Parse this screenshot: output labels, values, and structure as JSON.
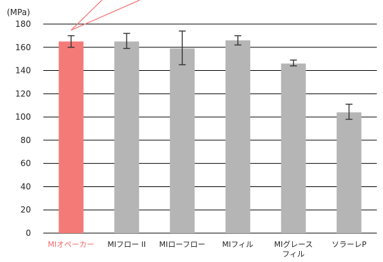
{
  "chart_data": {
    "type": "bar",
    "ylabel": "(MPa)",
    "ylim": [
      0,
      180
    ],
    "yticks": [
      0,
      20,
      40,
      60,
      80,
      100,
      120,
      140,
      160,
      180
    ],
    "grid": true,
    "categories": [
      [
        "MIオペーカー"
      ],
      [
        "MIフロー II"
      ],
      [
        "MIローフロー"
      ],
      [
        "MIフィル"
      ],
      [
        "MIグレース",
        "フィル"
      ],
      [
        "ソラーレP"
      ]
    ],
    "values": [
      165,
      165,
      159,
      166,
      146,
      104
    ],
    "error_low": [
      160,
      159,
      145,
      162,
      144,
      98
    ],
    "error_high": [
      170,
      172,
      174,
      170,
      149,
      111
    ],
    "colors": {
      "highlight": "#f47a78",
      "bar": "#b5b5b5",
      "highlight_label": "#f06a6a",
      "grid": "#000000",
      "error": "#333333",
      "callout": "#f47a78"
    },
    "highlight_index": 0
  }
}
